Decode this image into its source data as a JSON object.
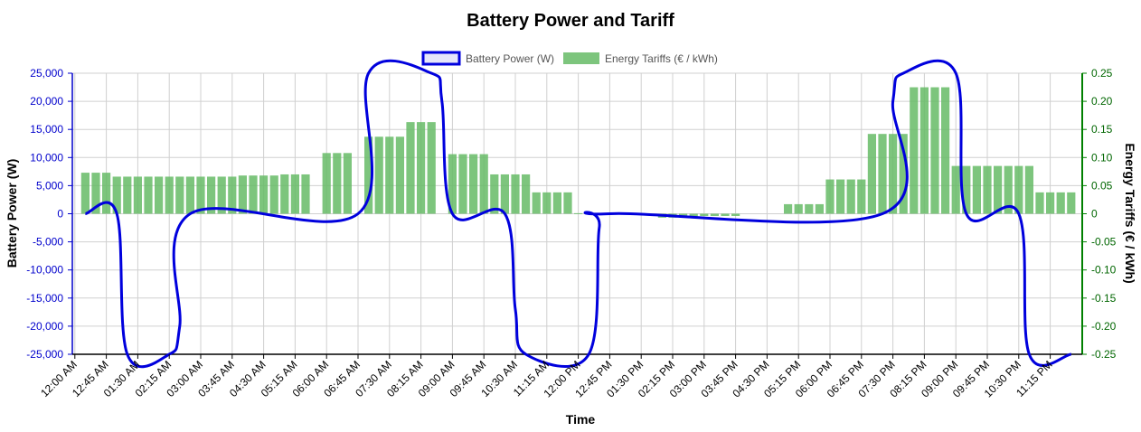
{
  "chart_data": {
    "type": "bar+line",
    "title": "Battery Power and Tariff",
    "xlabel": "Time",
    "ylabel_left": "Battery Power (W)",
    "ylabel_right": "Energy Tariffs (€ / kWh)",
    "ylim_left": [
      -25000,
      25000
    ],
    "ylim_right": [
      -0.25,
      0.25
    ],
    "y_ticks_left": [
      "25,000",
      "20,000",
      "15,000",
      "10,000",
      "5,000",
      "0",
      "-5,000",
      "-10,000",
      "-15,000",
      "-20,000",
      "-25,000"
    ],
    "y_ticks_right": [
      "0.25",
      "0.20",
      "0.15",
      "0.10",
      "0.05",
      "0",
      "-0.05",
      "-0.10",
      "-0.15",
      "-0.20",
      "-0.25"
    ],
    "x_tick_labels": [
      "12:00 AM",
      "12:45 AM",
      "01:30 AM",
      "02:15 AM",
      "03:00 AM",
      "03:45 AM",
      "04:30 AM",
      "05:15 AM",
      "06:00 AM",
      "06:45 AM",
      "07:30 AM",
      "08:15 AM",
      "09:00 AM",
      "09:45 AM",
      "10:30 AM",
      "11:15 AM",
      "12:00 PM",
      "12:45 PM",
      "01:30 PM",
      "02:15 PM",
      "03:00 PM",
      "03:45 PM",
      "04:30 PM",
      "05:15 PM",
      "06:00 PM",
      "06:45 PM",
      "07:30 PM",
      "08:15 PM",
      "09:00 PM",
      "09:45 PM",
      "10:30 PM",
      "11:15 PM"
    ],
    "interval_minutes": 15,
    "grid": true,
    "legend_position": "top",
    "series": [
      {
        "name": "Battery Power (W)",
        "kind": "line",
        "axis": "left",
        "color": "#0000dd",
        "points": [
          [
            "00:15",
            0
          ],
          [
            "01:00",
            0
          ],
          [
            "01:15",
            -25000
          ],
          [
            "02:15",
            -25000
          ],
          [
            "02:30",
            -20000
          ],
          [
            "02:45",
            0
          ],
          [
            "06:45",
            0
          ],
          [
            "07:00",
            25000
          ],
          [
            "08:30",
            25000
          ],
          [
            "08:45",
            20000
          ],
          [
            "09:00",
            0
          ],
          [
            "10:15",
            0
          ],
          [
            "10:30",
            -17000
          ],
          [
            "10:45",
            -25000
          ],
          [
            "12:15",
            -25000
          ],
          [
            "12:30",
            -2500
          ],
          [
            "12:45",
            0
          ],
          [
            "19:15",
            0
          ],
          [
            "19:30",
            20000
          ],
          [
            "19:45",
            25000
          ],
          [
            "21:00",
            25000
          ],
          [
            "21:15",
            0
          ],
          [
            "22:30",
            0
          ],
          [
            "22:45",
            -25000
          ],
          [
            "23:45",
            -25000
          ]
        ]
      },
      {
        "name": "Energy Tariffs (€ / kWh)",
        "kind": "bar",
        "axis": "right",
        "color": "#66bb66",
        "groups": [
          {
            "start": "00:15",
            "count": 3,
            "value": 0.073
          },
          {
            "start": "01:00",
            "count": 12,
            "value": 0.066
          },
          {
            "start": "04:00",
            "count": 4,
            "value": 0.068
          },
          {
            "start": "05:00",
            "count": 3,
            "value": 0.07
          },
          {
            "start": "06:00",
            "count": 3,
            "value": 0.108
          },
          {
            "start": "07:00",
            "count": 4,
            "value": 0.137
          },
          {
            "start": "08:00",
            "count": 3,
            "value": 0.163
          },
          {
            "start": "09:00",
            "count": 4,
            "value": 0.106
          },
          {
            "start": "10:00",
            "count": 4,
            "value": 0.07
          },
          {
            "start": "11:00",
            "count": 4,
            "value": 0.038
          },
          {
            "start": "12:00",
            "count": 1,
            "value": 0.001
          },
          {
            "start": "14:00",
            "count": 4,
            "value": -0.007
          },
          {
            "start": "15:00",
            "count": 4,
            "value": -0.004
          },
          {
            "start": "17:00",
            "count": 4,
            "value": 0.017
          },
          {
            "start": "18:00",
            "count": 4,
            "value": 0.061
          },
          {
            "start": "19:00",
            "count": 4,
            "value": 0.142
          },
          {
            "start": "20:00",
            "count": 4,
            "value": 0.225
          },
          {
            "start": "21:00",
            "count": 8,
            "value": 0.085
          },
          {
            "start": "23:00",
            "count": 4,
            "value": 0.038
          }
        ]
      }
    ]
  },
  "colors": {
    "line": "#0000dd",
    "bar": "#66bb66",
    "left_axis_text": "#0000cc",
    "right_axis_text": "#006600",
    "right_axis_line": "#008000",
    "grid": "#d0d0d0",
    "legend_box_fill": "#e6e6fa"
  }
}
